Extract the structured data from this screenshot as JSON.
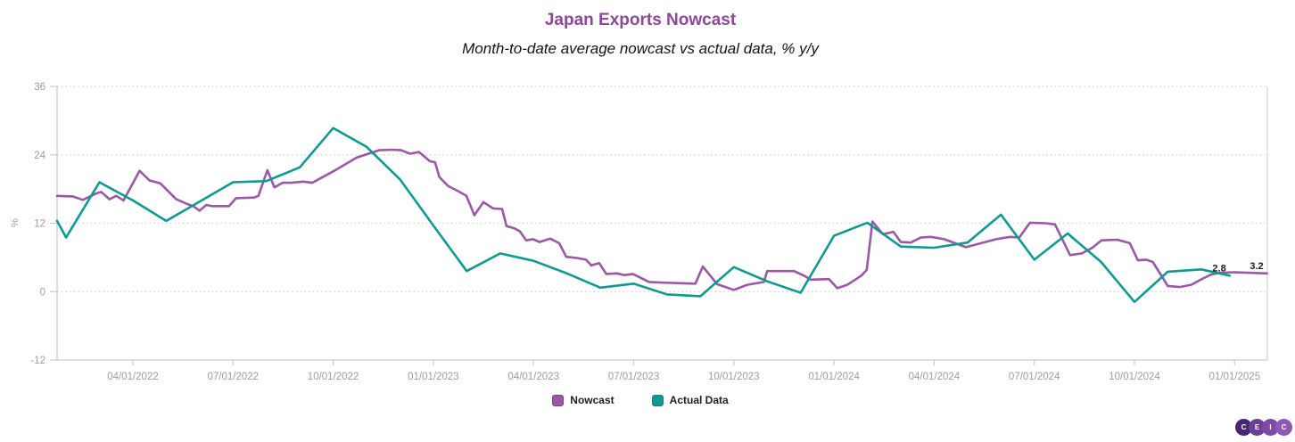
{
  "header": {
    "title": "Japan Exports Nowcast",
    "subtitle": "Month-to-date average nowcast vs actual data, % y/y"
  },
  "colors": {
    "title": "#8c4799",
    "axis_text": "#9b9ca8",
    "grid_dotted": "#d6d6dc",
    "axis_line": "#c9c9d2",
    "end_label_text": "#1d1d1d",
    "nowcast": "#9b58a5",
    "nowcast_border": "#7e3f90",
    "actual": "#0f9a91",
    "actual_border": "#0b7f78"
  },
  "legend": {
    "items": [
      {
        "name": "nowcast",
        "label": "Nowcast",
        "color": "#9b58a5",
        "border": "#7e3f90"
      },
      {
        "name": "actual-data",
        "label": "Actual Data",
        "color": "#0f9a91",
        "border": "#0b7f78"
      }
    ]
  },
  "logo": {
    "letters": [
      "C",
      "E",
      "I",
      "C"
    ],
    "colors": [
      "#45286f",
      "#6b3f97",
      "#7e4aa8",
      "#8f58b5"
    ]
  },
  "chart_data": {
    "type": "line",
    "title": "Japan Exports Nowcast",
    "subtitle": "Month-to-date average nowcast vs actual data, % y/y",
    "xlabel": "",
    "ylabel": "%",
    "ylim": [
      -12,
      36
    ],
    "y_ticks": [
      36,
      24,
      12,
      0,
      -12
    ],
    "grid": "horizontal-dotted",
    "legend_position": "bottom-center",
    "x_unit": "months since 2022-01-01",
    "xlim_months": [
      0.73,
      36.98
    ],
    "x_ticks": [
      {
        "label": "04/01/2022",
        "t": 3
      },
      {
        "label": "07/01/2022",
        "t": 6
      },
      {
        "label": "10/01/2022",
        "t": 9
      },
      {
        "label": "01/01/2023",
        "t": 12
      },
      {
        "label": "04/01/2023",
        "t": 15
      },
      {
        "label": "07/01/2023",
        "t": 18
      },
      {
        "label": "10/01/2023",
        "t": 21
      },
      {
        "label": "01/01/2024",
        "t": 24
      },
      {
        "label": "04/01/2024",
        "t": 27
      },
      {
        "label": "07/01/2024",
        "t": 30
      },
      {
        "label": "10/01/2024",
        "t": 33
      },
      {
        "label": "01/01/2025",
        "t": 36
      }
    ],
    "series": [
      {
        "name": "Nowcast",
        "color": "#9b58a5",
        "end_label": "3.2",
        "points": [
          [
            0.73,
            16.8
          ],
          [
            1.2,
            16.7
          ],
          [
            1.5,
            16.1
          ],
          [
            1.9,
            17.2
          ],
          [
            2.05,
            17.5
          ],
          [
            2.3,
            16.2
          ],
          [
            2.5,
            16.8
          ],
          [
            2.72,
            16.0
          ],
          [
            3.2,
            21.2
          ],
          [
            3.5,
            19.5
          ],
          [
            3.82,
            19.0
          ],
          [
            4.3,
            16.2
          ],
          [
            4.62,
            15.4
          ],
          [
            4.81,
            15.0
          ],
          [
            5.0,
            14.2
          ],
          [
            5.2,
            15.2
          ],
          [
            5.37,
            15.0
          ],
          [
            5.88,
            15.0
          ],
          [
            6.09,
            16.4
          ],
          [
            6.63,
            16.5
          ],
          [
            6.76,
            16.8
          ],
          [
            7.03,
            21.3
          ],
          [
            7.24,
            18.3
          ],
          [
            7.48,
            19.1
          ],
          [
            7.75,
            19.1
          ],
          [
            8.1,
            19.3
          ],
          [
            8.37,
            19.1
          ],
          [
            9.03,
            21.2
          ],
          [
            9.7,
            23.5
          ],
          [
            10.37,
            24.8
          ],
          [
            10.77,
            24.9
          ],
          [
            11.04,
            24.8
          ],
          [
            11.3,
            24.2
          ],
          [
            11.57,
            24.5
          ],
          [
            11.89,
            22.9
          ],
          [
            12.05,
            22.7
          ],
          [
            12.18,
            20.1
          ],
          [
            12.45,
            18.5
          ],
          [
            12.72,
            17.7
          ],
          [
            12.99,
            16.8
          ],
          [
            13.23,
            13.4
          ],
          [
            13.5,
            15.7
          ],
          [
            13.79,
            14.6
          ],
          [
            14.06,
            14.5
          ],
          [
            14.19,
            11.5
          ],
          [
            14.43,
            11.1
          ],
          [
            14.59,
            10.6
          ],
          [
            14.78,
            9.0
          ],
          [
            14.99,
            9.2
          ],
          [
            15.18,
            8.7
          ],
          [
            15.5,
            9.3
          ],
          [
            15.77,
            8.5
          ],
          [
            15.98,
            6.1
          ],
          [
            16.3,
            5.9
          ],
          [
            16.57,
            5.6
          ],
          [
            16.73,
            4.6
          ],
          [
            16.97,
            5.0
          ],
          [
            17.18,
            3.1
          ],
          [
            17.5,
            3.2
          ],
          [
            17.72,
            2.9
          ],
          [
            17.98,
            3.1
          ],
          [
            18.46,
            1.7
          ],
          [
            18.78,
            1.6
          ],
          [
            19.32,
            1.5
          ],
          [
            19.85,
            1.4
          ],
          [
            20.07,
            4.4
          ],
          [
            20.5,
            1.3
          ],
          [
            21.0,
            0.3
          ],
          [
            21.4,
            1.2
          ],
          [
            21.9,
            1.7
          ],
          [
            22.0,
            3.6
          ],
          [
            22.8,
            3.6
          ],
          [
            23.1,
            2.8
          ],
          [
            23.3,
            2.1
          ],
          [
            23.85,
            2.2
          ],
          [
            24.1,
            0.6
          ],
          [
            24.4,
            1.2
          ],
          [
            24.82,
            2.8
          ],
          [
            24.98,
            3.8
          ],
          [
            25.15,
            12.3
          ],
          [
            25.46,
            10.1
          ],
          [
            25.65,
            10.3
          ],
          [
            25.78,
            10.5
          ],
          [
            26.0,
            8.7
          ],
          [
            26.3,
            8.6
          ],
          [
            26.6,
            9.5
          ],
          [
            26.9,
            9.6
          ],
          [
            27.3,
            9.2
          ],
          [
            27.95,
            7.8
          ],
          [
            28.86,
            9.2
          ],
          [
            29.28,
            9.6
          ],
          [
            29.55,
            9.5
          ],
          [
            29.87,
            12.1
          ],
          [
            30.35,
            12.0
          ],
          [
            30.62,
            11.8
          ],
          [
            31.07,
            6.4
          ],
          [
            31.42,
            6.7
          ],
          [
            31.74,
            7.7
          ],
          [
            32.01,
            9.0
          ],
          [
            32.49,
            9.1
          ],
          [
            32.86,
            8.5
          ],
          [
            33.1,
            5.5
          ],
          [
            33.35,
            5.6
          ],
          [
            33.55,
            5.2
          ],
          [
            34.0,
            1.0
          ],
          [
            34.35,
            0.8
          ],
          [
            34.7,
            1.2
          ],
          [
            35.05,
            2.3
          ],
          [
            35.3,
            3.0
          ],
          [
            35.55,
            3.3
          ],
          [
            36.0,
            3.4
          ],
          [
            36.97,
            3.2
          ]
        ]
      },
      {
        "name": "Actual Data",
        "color": "#0f9a91",
        "end_label": "2.8",
        "points": [
          [
            0.73,
            12.4
          ],
          [
            1,
            9.5
          ],
          [
            2,
            19.2
          ],
          [
            3,
            16.0
          ],
          [
            4,
            12.4
          ],
          [
            5,
            15.8
          ],
          [
            6,
            19.2
          ],
          [
            7,
            19.4
          ],
          [
            8,
            21.8
          ],
          [
            9,
            28.7
          ],
          [
            10,
            25.4
          ],
          [
            11,
            19.7
          ],
          [
            12,
            11.6
          ],
          [
            13,
            3.6
          ],
          [
            14,
            6.7
          ],
          [
            15,
            5.4
          ],
          [
            16,
            3.2
          ],
          [
            17,
            0.7
          ],
          [
            18,
            1.4
          ],
          [
            19,
            -0.5
          ],
          [
            20,
            -0.8
          ],
          [
            21,
            4.3
          ],
          [
            22,
            1.8
          ],
          [
            23,
            -0.2
          ],
          [
            24,
            9.8
          ],
          [
            25,
            12.1
          ],
          [
            26,
            7.9
          ],
          [
            27,
            7.7
          ],
          [
            28,
            8.6
          ],
          [
            29,
            13.5
          ],
          [
            30,
            5.6
          ],
          [
            31,
            10.2
          ],
          [
            32,
            5.2
          ],
          [
            33,
            -1.8
          ],
          [
            34,
            3.5
          ],
          [
            35,
            3.9
          ],
          [
            35.85,
            2.8
          ]
        ]
      }
    ]
  }
}
